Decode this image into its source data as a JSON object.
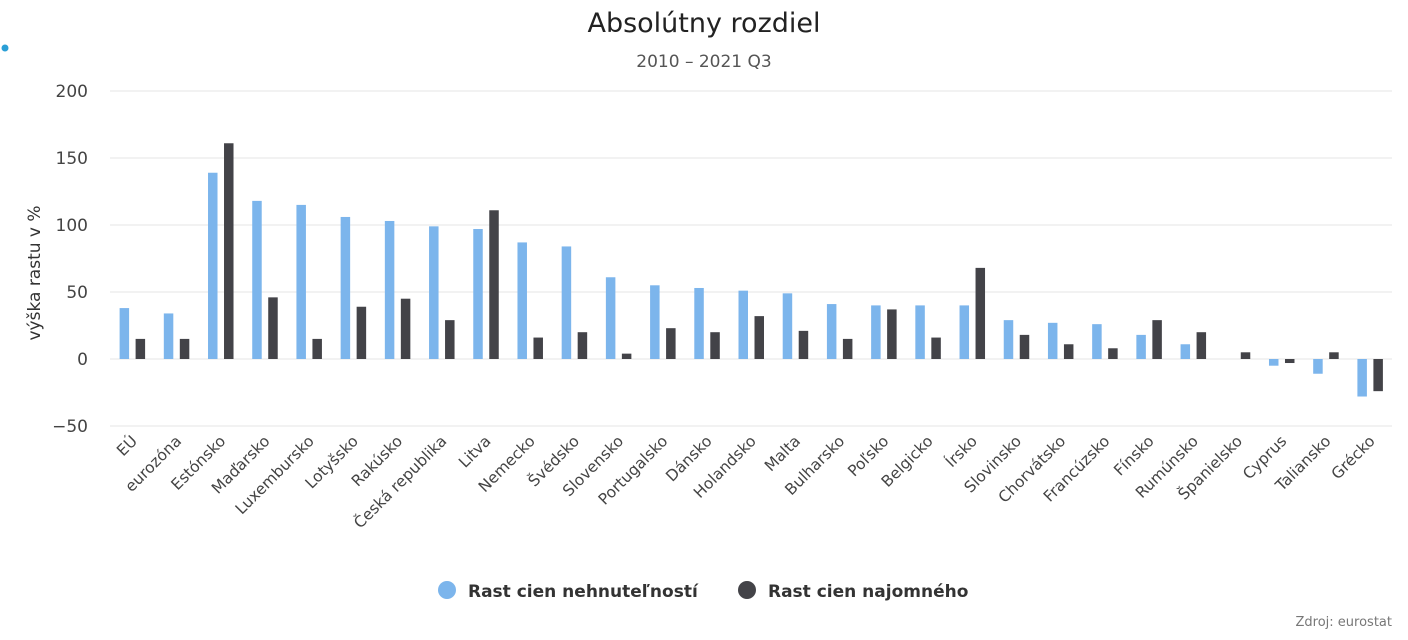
{
  "chart_data": {
    "type": "bar",
    "title": "Absolútny rozdiel",
    "subtitle": "2010 – 2021 Q3",
    "ylabel": "výška rastu v %",
    "ylim": [
      -50,
      200
    ],
    "yticks": [
      -50,
      0,
      50,
      100,
      150,
      200
    ],
    "grid": true,
    "legend_position": "bottom-center",
    "credit": "Zdroj: eurostat",
    "categories": [
      "EÚ",
      "eurozóna",
      "Estónsko",
      "Maďarsko",
      "Luxembursko",
      "Lotyšsko",
      "Rakúsko",
      "Česká republika",
      "Litva",
      "Nemecko",
      "Švédsko",
      "Slovensko",
      "Portugalsko",
      "Dánsko",
      "Holandsko",
      "Malta",
      "Bulharsko",
      "Poľsko",
      "Belgicko",
      "Írsko",
      "Slovinsko",
      "Chorvátsko",
      "Francúzsko",
      "Fínsko",
      "Rumúnsko",
      "Španielsko",
      "Cyprus",
      "Taliansko",
      "Grécko"
    ],
    "series": [
      {
        "name": "Rast cien nehnuteľností",
        "color": "#7cb5ec",
        "values": [
          38,
          34,
          139,
          118,
          115,
          106,
          103,
          99,
          97,
          87,
          84,
          61,
          55,
          53,
          51,
          49,
          41,
          40,
          40,
          40,
          29,
          27,
          26,
          18,
          11,
          0,
          -5,
          -11,
          -28
        ]
      },
      {
        "name": "Rast cien najomného",
        "color": "#434348",
        "values": [
          15,
          15,
          161,
          46,
          15,
          39,
          45,
          29,
          111,
          16,
          20,
          4,
          23,
          20,
          32,
          21,
          15,
          37,
          16,
          68,
          18,
          11,
          8,
          29,
          20,
          5,
          -3,
          5,
          -24
        ]
      }
    ]
  }
}
